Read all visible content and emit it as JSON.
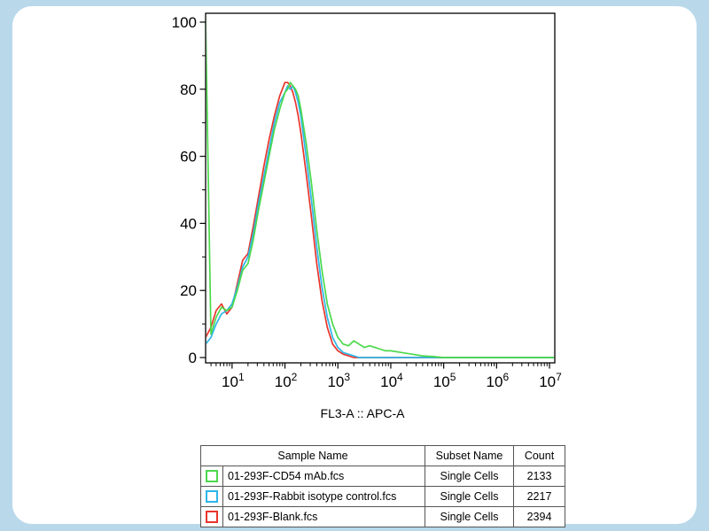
{
  "page": {
    "background_color": "#b9d9eb",
    "card_color": "#ffffff"
  },
  "chart_data": {
    "type": "line",
    "subtype": "flow-cytometry-histogram",
    "title": "",
    "xlabel": "FL3-A :: APC-A",
    "ylabel": "",
    "x_scale": "log10",
    "x_range_log10": [
      0.5,
      7.1
    ],
    "x_tick_exponents": [
      1,
      2,
      3,
      4,
      5,
      6,
      7
    ],
    "ylim": [
      0,
      102.5
    ],
    "y_ticks": [
      0,
      20,
      40,
      60,
      80,
      100
    ],
    "grid": false,
    "legend_position": "table-below",
    "series": [
      {
        "name": "01-293F-CD54 mAb.fcs",
        "color": "#4cd94c",
        "x_log10": [
          0.5,
          0.6,
          0.7,
          0.8,
          0.9,
          1.0,
          1.1,
          1.2,
          1.3,
          1.4,
          1.5,
          1.6,
          1.7,
          1.8,
          1.9,
          2.0,
          2.05,
          2.1,
          2.15,
          2.2,
          2.25,
          2.3,
          2.4,
          2.5,
          2.6,
          2.7,
          2.8,
          2.9,
          3.0,
          3.1,
          3.2,
          3.3,
          3.4,
          3.5,
          3.6,
          3.7,
          3.8,
          3.9,
          4.0,
          4.2,
          4.4,
          4.6,
          4.8,
          5.0,
          5.5,
          6.0,
          7.1
        ],
        "y": [
          101,
          7,
          12,
          15,
          14,
          15,
          20,
          26,
          28,
          35,
          44,
          52,
          60,
          68,
          74,
          79,
          80,
          82,
          81,
          80,
          78,
          74,
          64,
          52,
          38,
          26,
          16,
          10,
          6,
          4,
          3.5,
          5,
          4,
          3,
          3.5,
          3,
          2.5,
          2,
          2,
          1.5,
          1,
          0.5,
          0.3,
          0,
          0,
          0,
          0
        ]
      },
      {
        "name": "01-293F-Rabbit isotype control.fcs",
        "color": "#2eb6e8",
        "x_log10": [
          0.5,
          0.6,
          0.7,
          0.8,
          0.9,
          1.0,
          1.1,
          1.2,
          1.3,
          1.4,
          1.5,
          1.6,
          1.7,
          1.8,
          1.9,
          2.0,
          2.05,
          2.1,
          2.15,
          2.2,
          2.25,
          2.3,
          2.4,
          2.5,
          2.6,
          2.7,
          2.8,
          2.9,
          3.0,
          3.1,
          3.2,
          3.3,
          3.4,
          4.0,
          5.0,
          6.0,
          7.1
        ],
        "y": [
          4,
          6,
          10,
          13,
          14,
          16,
          21,
          27,
          30,
          37,
          46,
          54,
          62,
          70,
          76,
          79,
          81,
          80,
          81,
          79,
          76,
          72,
          60,
          47,
          33,
          21,
          12,
          6,
          3,
          1.5,
          1,
          0.5,
          0,
          0,
          0,
          0,
          0
        ]
      },
      {
        "name": "01-293F-Blank.fcs",
        "color": "#e8352c",
        "x_log10": [
          0.5,
          0.6,
          0.7,
          0.8,
          0.9,
          1.0,
          1.1,
          1.2,
          1.3,
          1.4,
          1.5,
          1.6,
          1.7,
          1.8,
          1.9,
          2.0,
          2.05,
          2.1,
          2.15,
          2.2,
          2.25,
          2.3,
          2.4,
          2.5,
          2.6,
          2.7,
          2.8,
          2.9,
          3.0,
          3.1,
          3.2,
          3.3,
          3.4,
          4.0,
          5.0,
          6.0,
          7.1
        ],
        "y": [
          6,
          9,
          14,
          16,
          13,
          15,
          22,
          29,
          31,
          39,
          48,
          57,
          65,
          72,
          78,
          82,
          82,
          81,
          79,
          76,
          72,
          67,
          55,
          42,
          28,
          17,
          9,
          4,
          2,
          1,
          0.5,
          0,
          0,
          0,
          0,
          0,
          0
        ]
      }
    ]
  },
  "table": {
    "headers": {
      "sample": "Sample Name",
      "subset": "Subset Name",
      "count": "Count"
    },
    "rows": [
      {
        "swatch_color": "#4cd94c",
        "sample": "01-293F-CD54 mAb.fcs",
        "subset": "Single Cells",
        "count": "2133"
      },
      {
        "swatch_color": "#2eb6e8",
        "sample": "01-293F-Rabbit isotype control.fcs",
        "subset": "Single Cells",
        "count": "2217"
      },
      {
        "swatch_color": "#e8352c",
        "sample": "01-293F-Blank.fcs",
        "subset": "Single Cells",
        "count": "2394"
      }
    ]
  }
}
